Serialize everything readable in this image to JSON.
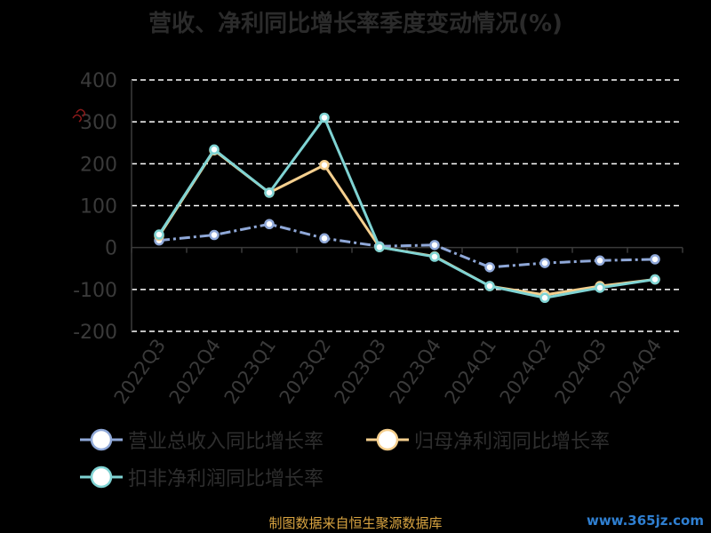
{
  "title": "营收、净利同比增长率季度变动情况(%)",
  "source": "制图数据来自恒生聚源数据库",
  "watermark": "www.365jz.com",
  "chart_data": {
    "type": "line",
    "title": "营收、净利同比增长率季度变动情况(%)",
    "xlabel": "",
    "ylabel": "",
    "categories": [
      "2022Q3",
      "2022Q4",
      "2023Q1",
      "2023Q2",
      "2023Q3",
      "2023Q4",
      "2024Q1",
      "2024Q2",
      "2024Q3",
      "2024Q4"
    ],
    "ylim": [
      -200,
      400
    ],
    "yticks": [
      400,
      300,
      200,
      100,
      0,
      -100,
      -200
    ],
    "grid": true,
    "legend_position": "bottom",
    "series": [
      {
        "name": "营业总收入同比增长率",
        "color": "#8fa8d8",
        "dash": "dashdot",
        "values": [
          17,
          30,
          56,
          22,
          3,
          6,
          -47,
          -37,
          -31,
          -28
        ]
      },
      {
        "name": "归母净利润同比增长率",
        "color": "#f5cf8e",
        "dash": "solid",
        "values": [
          28,
          232,
          131,
          197,
          1,
          -21,
          -92,
          -113,
          -92,
          -76
        ]
      },
      {
        "name": "扣非净利润同比增长率",
        "color": "#7fd3d3",
        "dash": "solid",
        "values": [
          31,
          234,
          131,
          310,
          1,
          -22,
          -92,
          -120,
          -96,
          -76
        ]
      }
    ]
  }
}
